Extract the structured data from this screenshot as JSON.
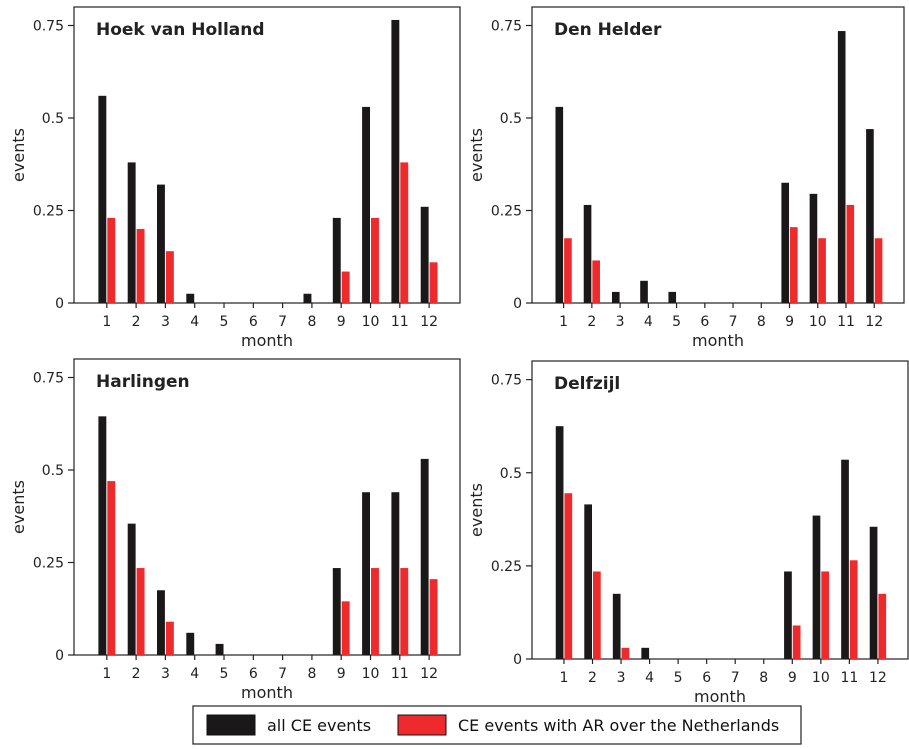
{
  "chart_data": [
    {
      "type": "bar",
      "title": "Hoek van Holland",
      "xlabel": "month",
      "ylabel": "events",
      "categories": [
        "1",
        "2",
        "3",
        "4",
        "5",
        "6",
        "7",
        "8",
        "9",
        "10",
        "11",
        "12"
      ],
      "ylim": [
        0,
        0.8
      ],
      "yticks": [
        "0",
        "0.25",
        "0.5",
        "0.75"
      ],
      "series": [
        {
          "name": "all CE events",
          "color": "#1a1818",
          "values": [
            0.56,
            0.38,
            0.32,
            0.025,
            0,
            0,
            0,
            0.025,
            0.23,
            0.53,
            0.765,
            0.26
          ]
        },
        {
          "name": "CE events with AR over the Netherlands",
          "color": "#ee2a2c",
          "values": [
            0.23,
            0.2,
            0.14,
            0,
            0,
            0,
            0,
            0,
            0.085,
            0.23,
            0.38,
            0.11
          ]
        }
      ]
    },
    {
      "type": "bar",
      "title": "Den Helder",
      "xlabel": "month",
      "ylabel": "events",
      "categories": [
        "1",
        "2",
        "3",
        "4",
        "5",
        "6",
        "7",
        "8",
        "9",
        "10",
        "11",
        "12"
      ],
      "ylim": [
        0,
        0.8
      ],
      "yticks": [
        "0",
        "0.25",
        "0.5",
        "0.75"
      ],
      "series": [
        {
          "name": "all CE events",
          "color": "#1a1818",
          "values": [
            0.53,
            0.265,
            0.03,
            0.06,
            0.03,
            0,
            0,
            0,
            0.325,
            0.295,
            0.735,
            0.47
          ]
        },
        {
          "name": "CE events with AR over the Netherlands",
          "color": "#ee2a2c",
          "values": [
            0.175,
            0.115,
            0,
            0,
            0,
            0,
            0,
            0,
            0.205,
            0.175,
            0.265,
            0.175
          ]
        }
      ]
    },
    {
      "type": "bar",
      "title": "Harlingen",
      "xlabel": "month",
      "ylabel": "events",
      "categories": [
        "1",
        "2",
        "3",
        "4",
        "5",
        "6",
        "7",
        "8",
        "9",
        "10",
        "11",
        "12"
      ],
      "ylim": [
        0,
        0.8
      ],
      "yticks": [
        "0",
        "0.25",
        "0.5",
        "0.75"
      ],
      "series": [
        {
          "name": "all CE events",
          "color": "#1a1818",
          "values": [
            0.645,
            0.355,
            0.175,
            0.06,
            0.03,
            0,
            0,
            0,
            0.235,
            0.44,
            0.44,
            0.53
          ]
        },
        {
          "name": "CE events with AR over the Netherlands",
          "color": "#ee2a2c",
          "values": [
            0.47,
            0.235,
            0.09,
            0,
            0,
            0,
            0,
            0,
            0.145,
            0.235,
            0.235,
            0.205
          ]
        }
      ]
    },
    {
      "type": "bar",
      "title": "Delfzijl",
      "xlabel": "month",
      "ylabel": "events",
      "categories": [
        "1",
        "2",
        "3",
        "4",
        "5",
        "6",
        "7",
        "8",
        "9",
        "10",
        "11",
        "12"
      ],
      "ylim": [
        0,
        0.8
      ],
      "yticks": [
        "0",
        "0.25",
        "0.5",
        "0.75"
      ],
      "series": [
        {
          "name": "all CE events",
          "color": "#1a1818",
          "values": [
            0.625,
            0.415,
            0.175,
            0.03,
            0,
            0,
            0,
            0,
            0.235,
            0.385,
            0.535,
            0.355
          ]
        },
        {
          "name": "CE events with AR over the Netherlands",
          "color": "#ee2a2c",
          "values": [
            0.445,
            0.235,
            0.03,
            0,
            0,
            0,
            0,
            0,
            0.09,
            0.235,
            0.265,
            0.175
          ]
        }
      ]
    }
  ],
  "legend": {
    "items": [
      {
        "label": "all CE events",
        "color": "#1a1818"
      },
      {
        "label": "CE events with AR over the Netherlands",
        "color": "#ee2a2c"
      }
    ]
  }
}
